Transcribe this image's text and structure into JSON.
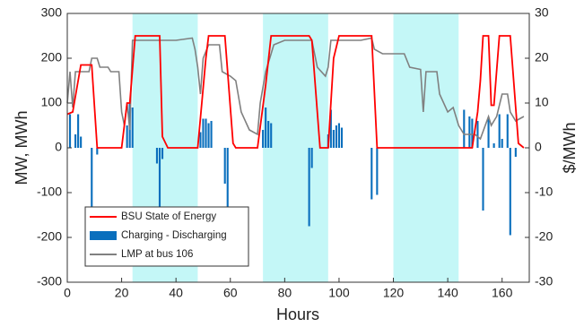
{
  "chart_data": {
    "type": "combo",
    "xlabel": "Hours",
    "ylabel": "MW, MWh",
    "y2label": "$/MWh",
    "xlim": [
      0,
      170
    ],
    "xticks": [
      0,
      20,
      40,
      60,
      80,
      100,
      120,
      140,
      160
    ],
    "ylim": [
      -300,
      300
    ],
    "yticks": [
      -300,
      -200,
      -100,
      0,
      100,
      200,
      300
    ],
    "y2lim": [
      -30,
      30
    ],
    "y2ticks": [
      -30,
      -20,
      -10,
      0,
      10,
      20,
      30
    ],
    "shaded_regions": [
      [
        24,
        48
      ],
      [
        72,
        96
      ],
      [
        120,
        144
      ]
    ],
    "shade_color": "#c4f7f7",
    "legend": "lower left",
    "series": [
      {
        "name": "BSU State of Energy",
        "kind": "line",
        "color": "#ff0000",
        "x": [
          0,
          2,
          5,
          9,
          11,
          20,
          22,
          23,
          25,
          34,
          35,
          37,
          48,
          51,
          52,
          58,
          61,
          62,
          70,
          73,
          75,
          89,
          90,
          93,
          96,
          98,
          100,
          112,
          114,
          149,
          151,
          152,
          153,
          155,
          156,
          157,
          159,
          163,
          166,
          168
        ],
        "values": [
          75,
          80,
          185,
          185,
          0,
          0,
          100,
          100,
          250,
          250,
          25,
          0,
          0,
          200,
          250,
          250,
          10,
          0,
          0,
          140,
          250,
          250,
          240,
          0,
          0,
          200,
          250,
          250,
          0,
          0,
          80,
          150,
          250,
          250,
          95,
          95,
          250,
          250,
          10,
          0
        ]
      },
      {
        "name": "Charging - Discharging",
        "kind": "bar",
        "color": "#0a6fbd",
        "x": [
          1,
          3,
          4,
          5,
          9,
          11,
          22,
          23,
          24,
          33,
          34,
          35,
          49,
          50,
          51,
          52,
          53,
          58,
          59,
          72,
          73,
          74,
          75,
          89,
          90,
          96,
          97,
          98,
          99,
          100,
          101,
          112,
          114,
          146,
          148,
          149,
          151,
          153,
          155,
          157,
          159,
          160,
          162,
          163,
          165
        ],
        "values": [
          75,
          30,
          75,
          25,
          -145,
          -15,
          50,
          100,
          90,
          -35,
          -160,
          -25,
          35,
          65,
          65,
          55,
          60,
          -80,
          -140,
          40,
          90,
          60,
          55,
          -175,
          -45,
          30,
          85,
          40,
          50,
          55,
          45,
          -115,
          -105,
          85,
          70,
          65,
          60,
          -140,
          65,
          10,
          75,
          20,
          75,
          -195,
          -20
        ]
      },
      {
        "name": "LMP at bus 106",
        "kind": "line",
        "axis": "y2",
        "color": "#808080",
        "x": [
          0,
          1,
          2,
          3,
          8,
          9,
          11,
          12,
          15,
          16,
          19,
          20,
          21,
          22,
          23,
          24,
          40,
          46,
          47,
          48,
          49,
          50,
          52,
          56,
          57,
          60,
          62,
          64,
          67,
          70,
          71,
          73,
          76,
          80,
          90,
          92,
          95,
          96,
          97,
          108,
          112,
          113,
          116,
          124,
          126,
          130,
          131,
          132,
          136,
          137,
          140,
          142,
          144,
          146,
          150,
          152,
          155,
          156,
          158,
          160,
          162,
          163,
          165,
          168
        ],
        "values": [
          10,
          17,
          9,
          17,
          17,
          20,
          20,
          18,
          18,
          17,
          17,
          8,
          5,
          10,
          4,
          24,
          24,
          24.5,
          22,
          18,
          12,
          20,
          23,
          23,
          17,
          16,
          15,
          8,
          4,
          3,
          10,
          17,
          23,
          24,
          24,
          18,
          16,
          18,
          24,
          24,
          24.5,
          22,
          21,
          21,
          18,
          17.5,
          8,
          17,
          17,
          12,
          8,
          9,
          5,
          3,
          3,
          2,
          7,
          5,
          7,
          12,
          12,
          8,
          6,
          7
        ]
      }
    ]
  }
}
